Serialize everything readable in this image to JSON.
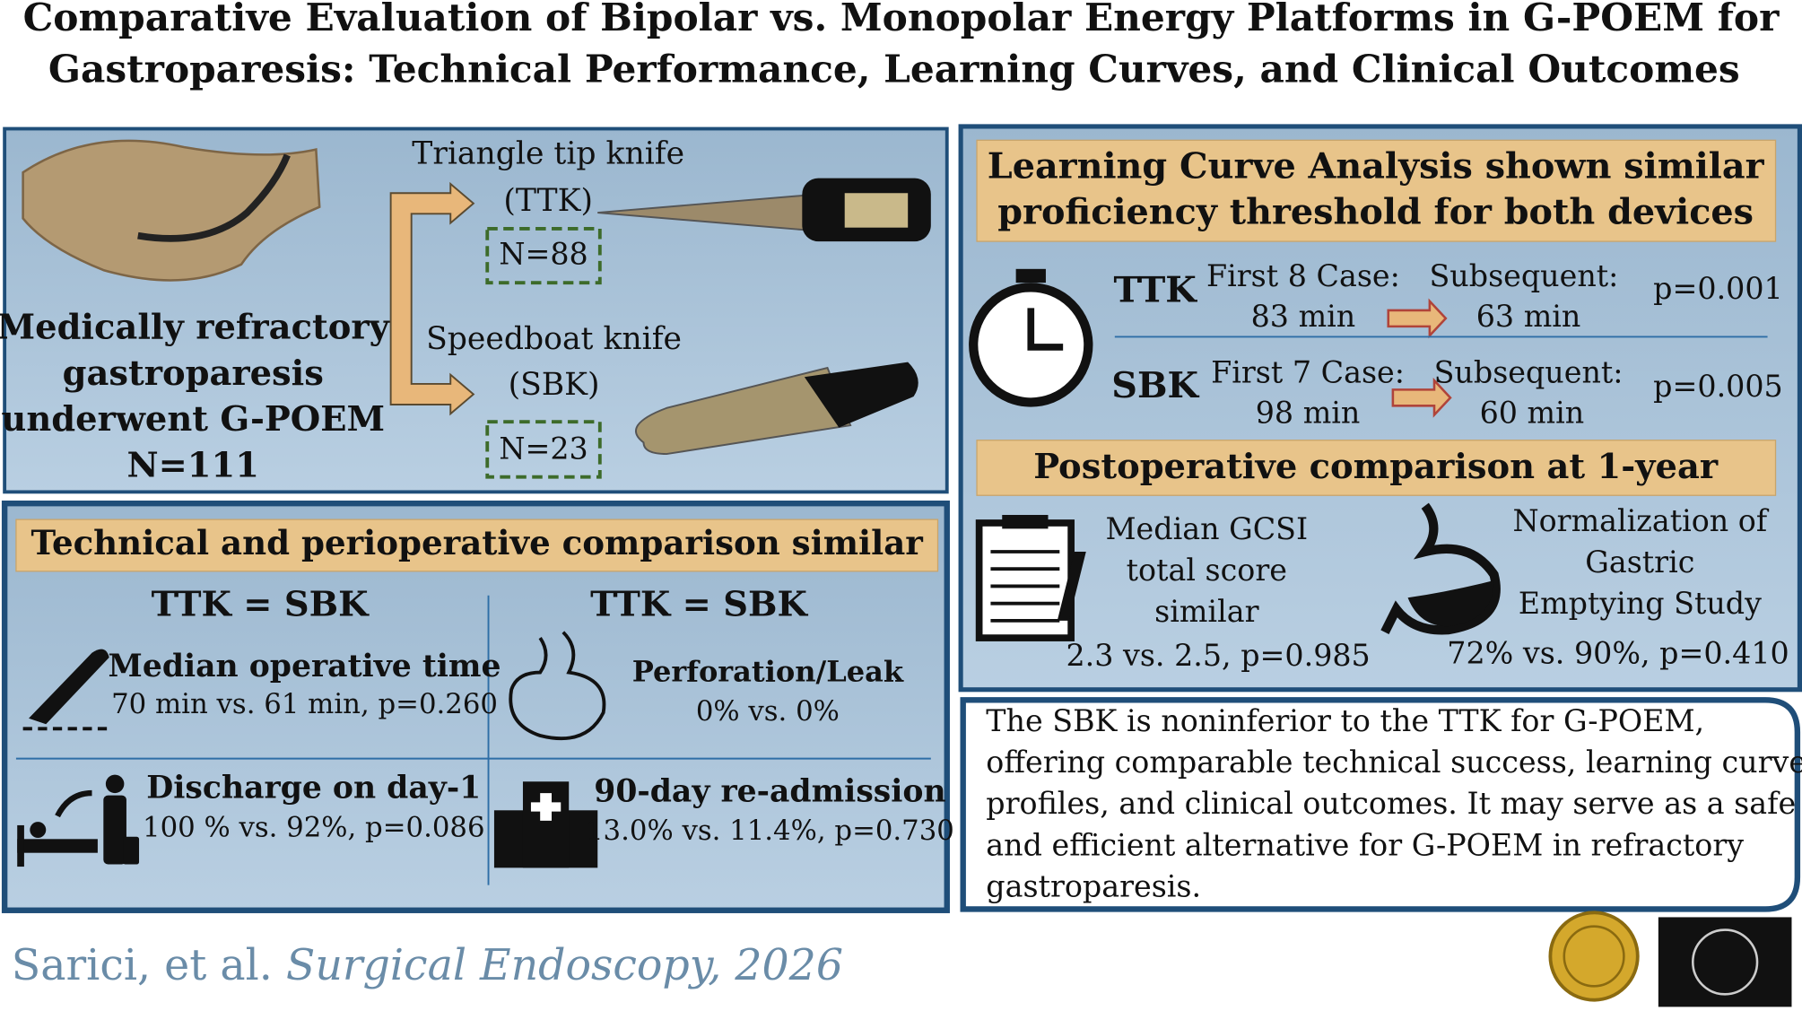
{
  "header": {
    "title_lines": [
      "Comparative Evaluation of Bipolar vs. Monopolar Energy Platforms in G-POEM for",
      "Gastroparesis: Technical Performance, Learning Curves, and Clinical Outcomes"
    ]
  },
  "cohort": {
    "label_lines": [
      "Medically refractory",
      "gastroparesis",
      "underwent G-POEM",
      "N=111"
    ],
    "arms": [
      {
        "name_lines": [
          "Triangle tip knife",
          "(TTK)"
        ],
        "n": "N=88"
      },
      {
        "name_lines": [
          "Speedboat knife",
          "(SBK)"
        ],
        "n": "N=23"
      }
    ]
  },
  "technical": {
    "heading": "Technical and perioperative comparison similar",
    "equations": [
      {
        "left": "TTK",
        "sign": "=",
        "right": "SBK"
      },
      {
        "left": "TTK",
        "sign": "=",
        "right": "SBK"
      }
    ],
    "items": [
      {
        "label": "Median operative time",
        "result": "70 min vs. 61 min, p=0.260"
      },
      {
        "label": "Perforation/Leak",
        "result": "0% vs. 0%"
      },
      {
        "label": "Discharge on day-1",
        "result": "100 % vs. 92%, p=0.086"
      },
      {
        "label": "90-day re-admission",
        "result": "13.0% vs. 11.4%, p=0.730"
      }
    ]
  },
  "learning": {
    "heading_lines": [
      "Learning Curve Analysis shown similar",
      "proficiency threshold for both devices"
    ],
    "rows": [
      {
        "device": "TTK",
        "first_lines": [
          "First 8 Case:",
          "83 min"
        ],
        "subsequent_lines": [
          "Subsequent:",
          "63 min"
        ],
        "p": "p=0.001"
      },
      {
        "device": "SBK",
        "first_lines": [
          "First 7 Case:",
          "98 min"
        ],
        "subsequent_lines": [
          "Subsequent:",
          "60 min"
        ],
        "p": "p=0.005"
      }
    ]
  },
  "postop": {
    "heading": "Postoperative comparison at 1-year",
    "items": [
      {
        "label_lines": [
          "Median GCSI",
          "total score",
          "similar"
        ],
        "result": "2.3 vs. 2.5, p=0.985"
      },
      {
        "label_lines": [
          "Normalization of",
          "Gastric",
          "Emptying Study"
        ],
        "result": "72% vs. 90%, p=0.410"
      }
    ]
  },
  "conclusion": {
    "lines": [
      "The SBK is noninferior to the TTK for G-POEM,",
      "offering comparable technical success, learning curve",
      "profiles, and clinical outcomes. It may serve as a safe",
      "and efficient alternative for G-POEM in refractory",
      "gastroparesis."
    ]
  },
  "citation": {
    "authors": "Sarici, et al.",
    "journal": "Surgical Endoscopy, 2026"
  }
}
